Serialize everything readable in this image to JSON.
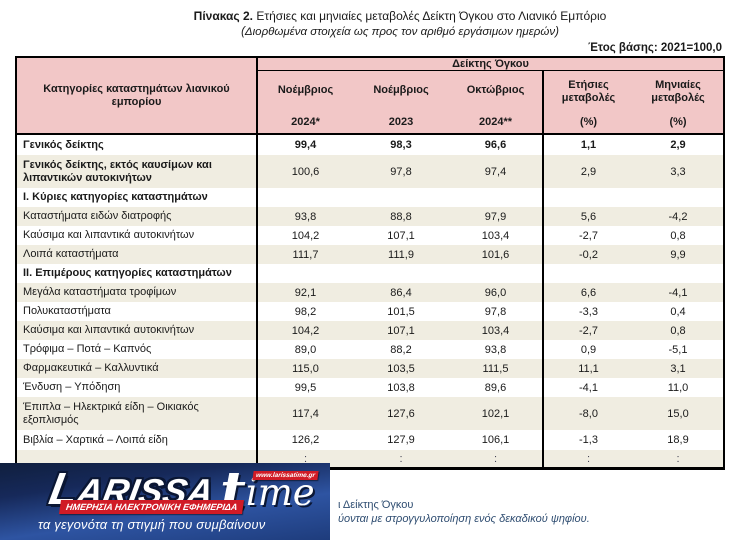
{
  "page": {
    "title_bold": "Πίνακας 2.",
    "title_rest": " Ετήσιες και μηνιαίες μεταβολές Δείκτη Όγκου στο Λιανικό Εμπόριο",
    "subtitle": "(Διορθωμένα στοιχεία ως προς τον αριθμό εργάσιμων ημερών)",
    "base_year_note": "Έτος βάσης: 2021=100,0"
  },
  "table": {
    "category_header": "Κατηγορίες καταστημάτων λιανικού εμπορίου",
    "group_header": "Δείκτης Όγκου",
    "columns": [
      {
        "line1": "Νοέμβριος",
        "line2": "2024*"
      },
      {
        "line1": "Νοέμβριος",
        "line2": "2023"
      },
      {
        "line1": "Οκτώβριος",
        "line2": "2024**"
      },
      {
        "line1": "Ετήσιες μεταβολές",
        "line2": "(%)"
      },
      {
        "line1": "Μηνιαίες μεταβολές",
        "line2": "(%)"
      }
    ],
    "rows": [
      {
        "style": "tot",
        "shaded": false,
        "label": "Γενικός δείκτης",
        "values": [
          "99,4",
          "98,3",
          "96,6",
          "1,1",
          "2,9"
        ]
      },
      {
        "style": "tot2",
        "shaded": true,
        "label": "Γενικός δείκτης, εκτός καυσίμων και λιπαντικών αυτοκινήτων",
        "values": [
          "100,6",
          "97,8",
          "97,4",
          "2,9",
          "3,3"
        ]
      },
      {
        "style": "sec",
        "shaded": false,
        "label": "Ι. Κύριες κατηγορίες καταστημάτων",
        "values": [
          "",
          "",
          "",
          "",
          ""
        ]
      },
      {
        "style": "",
        "shaded": true,
        "label": "Καταστήματα ειδών διατροφής",
        "values": [
          "93,8",
          "88,8",
          "97,9",
          "5,6",
          "-4,2"
        ]
      },
      {
        "style": "",
        "shaded": false,
        "label": "Καύσιμα και λιπαντικά αυτοκινήτων",
        "values": [
          "104,2",
          "107,1",
          "103,4",
          "-2,7",
          "0,8"
        ]
      },
      {
        "style": "",
        "shaded": true,
        "label": "Λοιπά καταστήματα",
        "values": [
          "111,7",
          "111,9",
          "101,6",
          "-0,2",
          "9,9"
        ]
      },
      {
        "style": "sec",
        "shaded": false,
        "label": "ΙΙ. Επιμέρους κατηγορίες καταστημάτων",
        "values": [
          "",
          "",
          "",
          "",
          ""
        ]
      },
      {
        "style": "",
        "shaded": true,
        "label": "Μεγάλα καταστήματα τροφίμων",
        "values": [
          "92,1",
          "86,4",
          "96,0",
          "6,6",
          "-4,1"
        ]
      },
      {
        "style": "",
        "shaded": false,
        "label": "Πολυκαταστήματα",
        "values": [
          "98,2",
          "101,5",
          "97,8",
          "-3,3",
          "0,4"
        ]
      },
      {
        "style": "",
        "shaded": true,
        "label": "Καύσιμα και λιπαντικά αυτοκινήτων",
        "values": [
          "104,2",
          "107,1",
          "103,4",
          "-2,7",
          "0,8"
        ]
      },
      {
        "style": "",
        "shaded": false,
        "label": "Τρόφιμα – Ποτά – Καπνός",
        "values": [
          "89,0",
          "88,2",
          "93,8",
          "0,9",
          "-5,1"
        ]
      },
      {
        "style": "",
        "shaded": true,
        "label": "Φαρμακευτικά – Καλλυντικά",
        "values": [
          "115,0",
          "103,5",
          "111,5",
          "11,1",
          "3,1"
        ]
      },
      {
        "style": "",
        "shaded": false,
        "label": "Ένδυση – Υπόδηση",
        "values": [
          "99,5",
          "103,8",
          "89,6",
          "-4,1",
          "11,0"
        ]
      },
      {
        "style": "",
        "shaded": true,
        "label": "Έπιπλα – Ηλεκτρικά είδη – Οικιακός εξοπλισμός",
        "values": [
          "117,4",
          "127,6",
          "102,1",
          "-8,0",
          "15,0"
        ]
      },
      {
        "style": "",
        "shaded": false,
        "label": "Βιβλία – Χαρτικά – Λοιπά είδη",
        "values": [
          "126,2",
          "127,9",
          "106,1",
          "-1,3",
          "18,9"
        ]
      },
      {
        "style": "cont",
        "shaded": true,
        "label": "",
        "values": [
          ":",
          ":",
          ":",
          ":",
          ":"
        ]
      }
    ]
  },
  "footnotes": {
    "fragment_line1": "ι Δείκτης Όγκου",
    "fragment_line2": "ύονται με στρογγυλοποίηση ενός δεκαδικού ψηφίου."
  },
  "watermark": {
    "brand": "LARISSA",
    "brand_first_letter": "L",
    "brand_rest": "ARISSA",
    "time_t": "t",
    "time_rest": "ime",
    "website": "www.larissatime.gr",
    "banner": "ΗΜΕΡΗΣΙΑ ΗΛΕΚΤΡΟΝΙΚΗ ΕΦΗΜΕΡΙΔΑ",
    "tagline": "τα γεγονότα τη στιγμή που συμβαίνουν"
  },
  "colors": {
    "header_pink": "#f2c7c7",
    "row_cream": "#f0ede1",
    "logo_navy_top": "#101f3e",
    "logo_blue": "#2e54a2",
    "logo_blue_bottom": "#1e3c7c",
    "logo_red": "#d01b26",
    "footnote_text": "#2f4d71"
  }
}
